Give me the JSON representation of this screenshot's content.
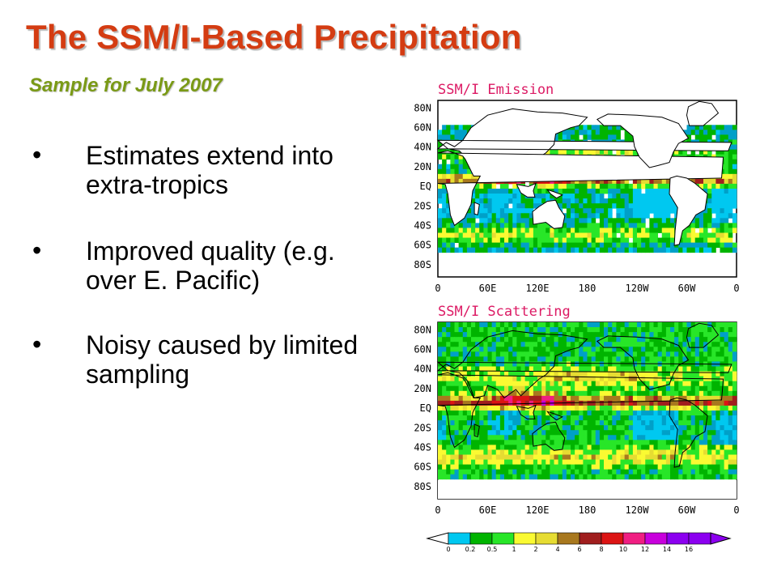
{
  "slide": {
    "title": "The SSM/I-Based Precipitation",
    "subtitle": "Sample for July 2007",
    "bullets": [
      "Estimates extend into extra-tropics",
      "Improved quality (e.g. over E. Pacific)",
      "Noisy caused by limited sampling"
    ]
  },
  "maps": [
    {
      "title": "SSM/I Emission",
      "lat_labels": [
        "80N",
        "60N",
        "40N",
        "20N",
        "EQ",
        "20S",
        "40S",
        "60S",
        "80S"
      ],
      "lon_labels": [
        "0",
        "60E",
        "120E",
        "180",
        "120W",
        "60W",
        "0"
      ]
    },
    {
      "title": "SSM/I Scattering",
      "lat_labels": [
        "80N",
        "60N",
        "40N",
        "20N",
        "EQ",
        "20S",
        "40S",
        "60S",
        "80S"
      ],
      "lon_labels": [
        "0",
        "60E",
        "120E",
        "180",
        "120W",
        "60W",
        "0"
      ]
    }
  ],
  "colorbar": {
    "ticks": [
      "0",
      "0.2",
      "0.5",
      "1",
      "2",
      "4",
      "6",
      "8",
      "10",
      "12",
      "14",
      "16"
    ],
    "colors": [
      "#00c8f0",
      "#00a0c8",
      "#00b400",
      "#28e628",
      "#fafa32",
      "#e6dc32",
      "#a8781e",
      "#a01e1e",
      "#dc1414",
      "#f01e82",
      "#c800dc",
      "#8c00f0"
    ]
  }
}
